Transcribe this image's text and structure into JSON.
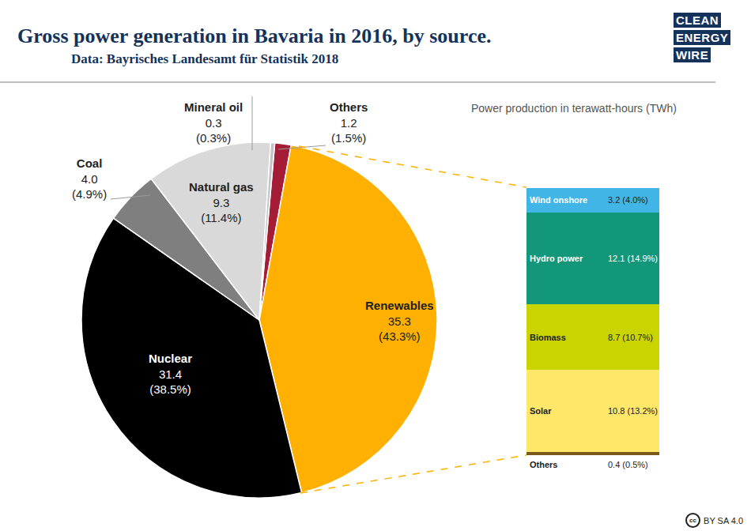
{
  "chart_data": [
    {
      "type": "pie",
      "title": "Gross power generation in Bavaria in 2016, by source.",
      "subtitle": "Data: Bayrisches Landesamt für Statistik 2018",
      "note": "Power production in terawatt-hours (TWh)",
      "logo": [
        "CLEAN",
        "ENERGY",
        "WIRE"
      ],
      "license_icon": "cc",
      "license": "BY SA 4.0",
      "categories": [
        "Others",
        "Renewables",
        "Nuclear",
        "Coal",
        "Natural gas",
        "Mineral oil"
      ],
      "values": [
        1.2,
        35.3,
        31.4,
        4.0,
        9.3,
        0.3
      ],
      "value_labels": [
        "1.2",
        "35.3",
        "31.4",
        "4.0",
        "9.3",
        "0.3"
      ],
      "shares": [
        1.5,
        43.3,
        38.5,
        4.9,
        11.4,
        0.3
      ],
      "share_labels": [
        "(1.5%)",
        "(43.3%)",
        "(38.5%)",
        "(4.9%)",
        "(11.4%)",
        "(0.3%)"
      ],
      "colors": [
        "#a51c36",
        "#ffb000",
        "#000000",
        "#7f7f7f",
        "#d9d9d9",
        "#c4c4c4"
      ],
      "data_labels": true
    },
    {
      "type": "bar",
      "stacked": true,
      "tick_labels": false,
      "grid": false,
      "ylim": [
        0,
        35.3
      ],
      "data_labels": true,
      "series": [
        {
          "name": "Wind onshore",
          "color": "#41b6e6",
          "values": [
            3.2
          ],
          "value_labels": [
            "3.2"
          ],
          "shares": [
            4.0
          ],
          "share_labels": [
            "(4.0%)"
          ]
        },
        {
          "name": "Hydro power",
          "color": "#12977a",
          "values": [
            12.1
          ],
          "value_labels": [
            "12.1"
          ],
          "shares": [
            14.9
          ],
          "share_labels": [
            "(14.9%)"
          ]
        },
        {
          "name": "Biomass",
          "color": "#c9d400",
          "values": [
            8.7
          ],
          "value_labels": [
            "8.7"
          ],
          "shares": [
            10.7
          ],
          "share_labels": [
            "(10.7%)"
          ]
        },
        {
          "name": "Solar",
          "color": "#ffe76a",
          "values": [
            10.8
          ],
          "value_labels": [
            "10.8"
          ],
          "shares": [
            13.2
          ],
          "share_labels": [
            "(13.2%)"
          ]
        },
        {
          "name": "Others",
          "color": "#7a5a1c",
          "values": [
            0.4
          ],
          "value_labels": [
            "0.4"
          ],
          "shares": [
            0.5
          ],
          "share_labels": [
            "(0.5%)"
          ]
        }
      ]
    }
  ]
}
